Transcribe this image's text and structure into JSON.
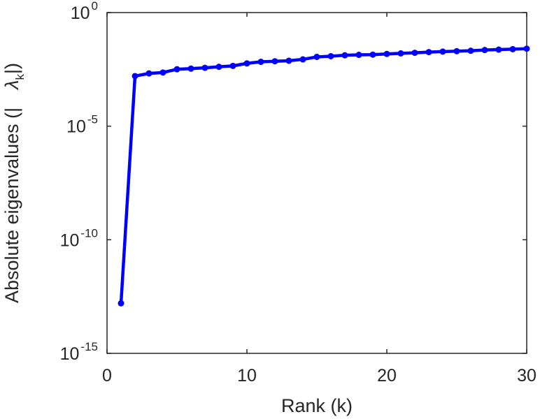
{
  "chart_data": {
    "type": "line",
    "xlabel": "Rank (k)",
    "ylabel": "Absolute eigenvalues (|λk|)",
    "ylabel_parts": {
      "main": "Absolute eigenvalues (|",
      "symbol": "λ",
      "subscript": "k",
      "close": "|)"
    },
    "xlim": [
      0,
      30
    ],
    "ylim": [
      1e-15,
      1
    ],
    "yscale": "log",
    "grid": false,
    "x_ticks": [
      {
        "value": 0,
        "label": "0"
      },
      {
        "value": 10,
        "label": "10"
      },
      {
        "value": 20,
        "label": "20"
      },
      {
        "value": 30,
        "label": "30"
      }
    ],
    "y_ticks": [
      {
        "value": 1,
        "base": "10",
        "exp": "0"
      },
      {
        "value": 1e-05,
        "base": "10",
        "exp": "-5"
      },
      {
        "value": 1e-10,
        "base": "10",
        "exp": "-10"
      },
      {
        "value": 1e-15,
        "base": "10",
        "exp": "-15"
      }
    ],
    "series": [
      {
        "color": "#0000ff",
        "x": [
          1,
          2,
          3,
          4,
          5,
          6,
          7,
          8,
          9,
          10,
          11,
          12,
          13,
          14,
          15,
          16,
          17,
          18,
          19,
          20,
          21,
          22,
          23,
          24,
          25,
          26,
          27,
          28,
          29,
          30
        ],
        "y": [
          1.6e-13,
          0.0016,
          0.0021,
          0.0023,
          0.0032,
          0.0034,
          0.0037,
          0.0041,
          0.0045,
          0.0058,
          0.0068,
          0.0072,
          0.0076,
          0.0087,
          0.0112,
          0.012,
          0.0132,
          0.0138,
          0.0141,
          0.0151,
          0.016,
          0.017,
          0.0182,
          0.0191,
          0.02,
          0.0209,
          0.0224,
          0.0234,
          0.0245,
          0.0257
        ]
      }
    ]
  }
}
